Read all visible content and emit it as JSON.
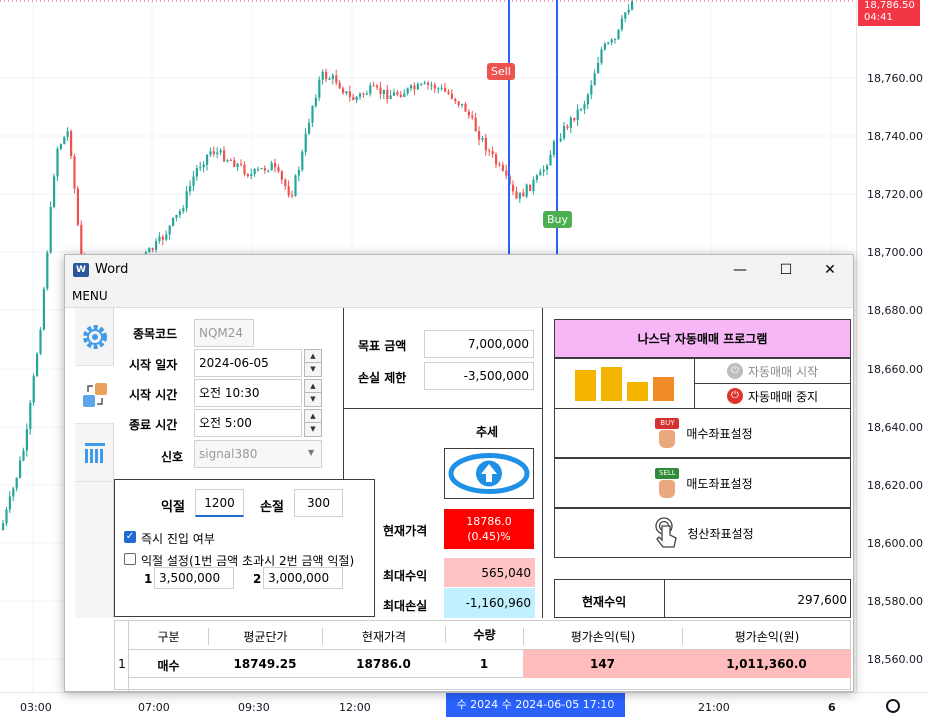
{
  "chart": {
    "price_ticks": [
      "18,760.00",
      "18,740.00",
      "18,720.00",
      "18,700.00",
      "18,680.00",
      "18,660.00",
      "18,640.00",
      "18,620.00",
      "18,600.00",
      "18,580.00",
      "18,560.00"
    ],
    "price_tag_price": "18,786.50",
    "price_tag_time": "04:41",
    "time_ticks": [
      "03:00",
      "07:00",
      "09:30",
      "12:00",
      "21:00",
      "6"
    ],
    "time_cursor": "수 2024   수 2024-06-05   17:10",
    "sell_flag": "Sell",
    "buy_flag": "Buy",
    "colors": {
      "up": "#26a69a",
      "down": "#ef5350",
      "cursor": "#2962ff",
      "tag": "#f23645"
    }
  },
  "window": {
    "title": "Word",
    "app_icon": "word-icon",
    "menu": "MENU"
  },
  "form": {
    "code_label": "종목코드",
    "code_value": "NQM24",
    "start_date_label": "시작 일자",
    "start_date_value": "2024-06-05",
    "start_time_label": "시작 시간",
    "start_time_value": "오전 10:30",
    "end_time_label": "종료 시간",
    "end_time_value": "오전 5:00",
    "signal_label": "신호",
    "signal_value": "signal380"
  },
  "limits": {
    "take_profit_label": "익절",
    "take_profit_value": "1200",
    "stop_loss_label": "손절",
    "stop_loss_value": "300",
    "instant_entry_label": "즉시 진입 여부",
    "instant_entry_checked": true,
    "profit_setting_label": "익절 설정(1번 금액 초과시 2번 금액 익절)",
    "profit_setting_checked": false,
    "amount1_label": "1",
    "amount1_value": "3,500,000",
    "amount2_label": "2",
    "amount2_value": "3,000,000"
  },
  "targets": {
    "goal_label": "목표 금액",
    "goal_value": "7,000,000",
    "loss_label": "손실 제한",
    "loss_value": "-3,500,000",
    "trend_label": "추세",
    "current_price_label": "현재가격",
    "current_price_value": "18786.0",
    "current_price_change": "(0.45)%",
    "max_profit_label": "최대수익",
    "max_profit_value": "565,040",
    "max_loss_label": "최대손실",
    "max_loss_value": "-1,160,960"
  },
  "program": {
    "title": "나스닥 자동매매 프로그램",
    "start_label": "자동매매 시작",
    "stop_label": "자동매매 중지",
    "buy_coord_label": "매수좌표설정",
    "sell_coord_label": "매도좌표설정",
    "clear_coord_label": "청산좌표설정",
    "buy_badge": "BUY",
    "sell_badge": "SELL",
    "current_profit_label": "현재수익",
    "current_profit_value": "297,600",
    "bar_colors": [
      "#f5b400",
      "#f5b400",
      "#f5b400",
      "#f08c28"
    ]
  },
  "positions": {
    "headers": [
      "구분",
      "평균단가",
      "현재가격",
      "수량",
      "평가손익(틱)",
      "평가손익(원)"
    ],
    "rows": [
      {
        "index": "1",
        "side": "매수",
        "avg_price": "18749.25",
        "cur_price": "18786.0",
        "qty": "1",
        "pnl_ticks": "147",
        "pnl_won": "1,011,360.0"
      }
    ]
  }
}
